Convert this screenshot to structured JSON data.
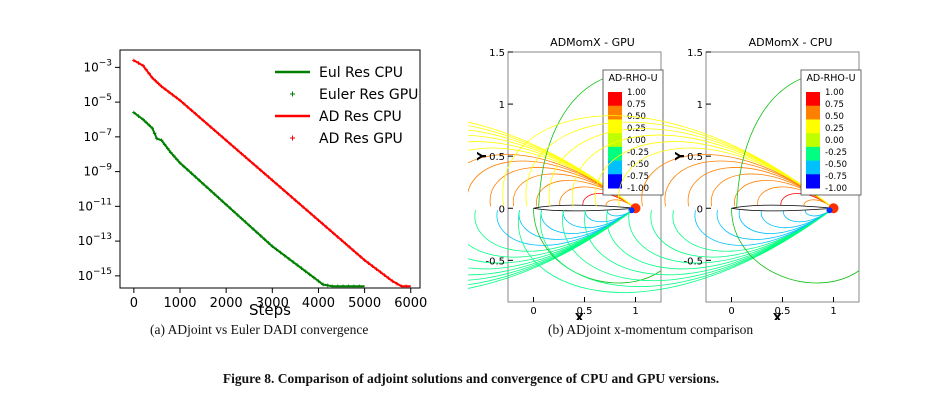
{
  "figure": {
    "caption": "Figure 8.  Comparison of adjoint solutions and convergence of CPU and GPU versions."
  },
  "panel_a": {
    "caption": "(a)  ADjoint vs Euler DADI convergence",
    "tick_superscripts": [
      "−3",
      "−5",
      "−7",
      "−9",
      "−11",
      "−13",
      "−15"
    ],
    "tick_base": "10"
  },
  "panel_b": {
    "caption": "(b)  ADjoint x-momentum comparison",
    "plots": [
      {
        "title": "ADMomX - GPU",
        "legend_title": "AD-RHO-U"
      },
      {
        "title": "ADMomX - CPU",
        "legend_title": "AD-RHO-U"
      }
    ],
    "legend_levels": [
      "1.00",
      "0.75",
      "0.50",
      "0.25",
      "0.00",
      "-0.25",
      "-0.50",
      "-0.75",
      "-1.00"
    ],
    "y_ticks": [
      "1.5",
      "1",
      "0.5",
      "0",
      "-0.5"
    ],
    "x_ticks": [
      "0",
      "0.5",
      "1"
    ],
    "x_label": "X",
    "y_label": "Y",
    "colors": {
      "contour_scale": [
        "#0000ff",
        "#00c0ff",
        "#00ff80",
        "#c0ff00",
        "#ffff00",
        "#ff8000",
        "#ff0000"
      ]
    }
  },
  "chart_data": {
    "type": "line",
    "xlabel": "Steps",
    "ylabel": "",
    "xlim": [
      -300,
      6200
    ],
    "ylim": [
      -15.7,
      -2.0
    ],
    "x_ticks": [
      0,
      1000,
      2000,
      3000,
      4000,
      5000,
      6000
    ],
    "y_ticks_exp": [
      -3,
      -5,
      -7,
      -9,
      -11,
      -13,
      -15
    ],
    "y_scale": "log10",
    "grid": false,
    "legend_position": "top-right",
    "series": [
      {
        "name": "Eul Res CPU",
        "style": "line",
        "color": "#008000",
        "x": [
          0,
          200,
          400,
          500,
          600,
          800,
          1000,
          2000,
          3000,
          3900,
          4100,
          4300,
          5000
        ],
        "log10_y": [
          -5.6,
          -6.0,
          -6.5,
          -7.1,
          -7.2,
          -7.9,
          -8.5,
          -10.9,
          -13.3,
          -15.1,
          -15.5,
          -15.6,
          -15.6
        ]
      },
      {
        "name": "Euler Res GPU",
        "style": "markers",
        "color": "#008000",
        "x": [
          0,
          200,
          400,
          500,
          600,
          800,
          1000,
          2000,
          3000,
          3900,
          4100,
          4300,
          5000
        ],
        "log10_y": [
          -5.6,
          -6.0,
          -6.5,
          -7.1,
          -7.2,
          -7.9,
          -8.5,
          -10.9,
          -13.3,
          -15.1,
          -15.5,
          -15.6,
          -15.6
        ]
      },
      {
        "name": "AD Res CPU",
        "style": "line",
        "color": "#ff0000",
        "x": [
          0,
          200,
          400,
          600,
          1000,
          2000,
          3000,
          4000,
          5000,
          5600,
          5800,
          6000
        ],
        "log10_y": [
          -2.6,
          -2.9,
          -3.6,
          -4.1,
          -4.9,
          -7.2,
          -9.5,
          -11.8,
          -14.1,
          -15.3,
          -15.6,
          -15.6
        ]
      },
      {
        "name": "AD Res GPU",
        "style": "markers",
        "color": "#ff0000",
        "x": [
          0,
          200,
          400,
          600,
          1000,
          2000,
          3000,
          4000,
          5000,
          5600,
          5800,
          6000
        ],
        "log10_y": [
          -2.6,
          -2.9,
          -3.6,
          -4.1,
          -4.9,
          -7.2,
          -9.5,
          -11.8,
          -14.1,
          -15.3,
          -15.6,
          -15.6
        ]
      }
    ]
  }
}
